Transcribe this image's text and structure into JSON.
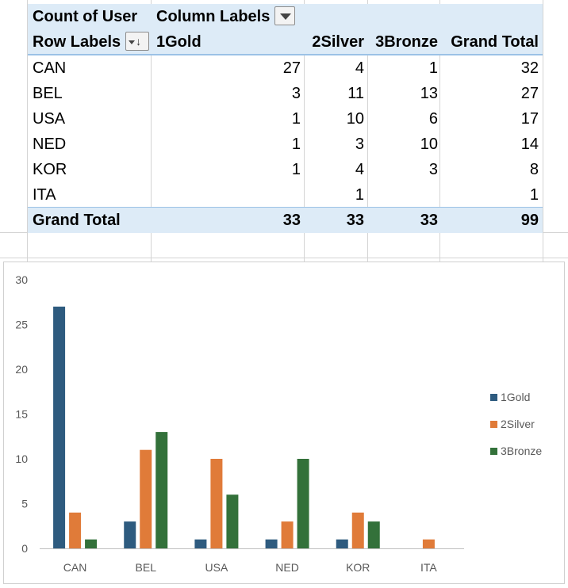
{
  "pivot": {
    "header1": {
      "count_label": "Count of User",
      "column_labels": "Column Labels"
    },
    "header2": {
      "row_labels": "Row Labels",
      "cols": [
        "1Gold",
        "2Silver",
        "3Bronze",
        "Grand Total"
      ]
    },
    "rows": [
      {
        "label": "CAN",
        "values": [
          "27",
          "4",
          "1",
          "32"
        ]
      },
      {
        "label": "BEL",
        "values": [
          "3",
          "11",
          "13",
          "27"
        ]
      },
      {
        "label": "USA",
        "values": [
          "1",
          "10",
          "6",
          "17"
        ]
      },
      {
        "label": "NED",
        "values": [
          "1",
          "3",
          "10",
          "14"
        ]
      },
      {
        "label": "KOR",
        "values": [
          "1",
          "4",
          "3",
          "8"
        ]
      },
      {
        "label": "ITA",
        "values": [
          "",
          "1",
          "",
          "1"
        ]
      }
    ],
    "grand_total": {
      "label": "Grand Total",
      "values": [
        "33",
        "33",
        "33",
        "99"
      ]
    }
  },
  "colors": {
    "gold": "#2e5b7f",
    "silver": "#e07b39",
    "bronze": "#33713a",
    "header_fill": "#ddebf7"
  },
  "chart_data": {
    "type": "bar",
    "title": "",
    "xlabel": "",
    "ylabel": "",
    "categories": [
      "CAN",
      "BEL",
      "USA",
      "NED",
      "KOR",
      "ITA"
    ],
    "series": [
      {
        "name": "1Gold",
        "values": [
          27,
          3,
          1,
          1,
          1,
          0
        ]
      },
      {
        "name": "2Silver",
        "values": [
          4,
          11,
          10,
          3,
          4,
          1
        ]
      },
      {
        "name": "3Bronze",
        "values": [
          1,
          13,
          6,
          10,
          3,
          0
        ]
      }
    ],
    "ylim": [
      0,
      30
    ],
    "yticks": [
      "0",
      "5",
      "10",
      "15",
      "20",
      "25",
      "30"
    ],
    "grid": false,
    "legend": "right"
  }
}
